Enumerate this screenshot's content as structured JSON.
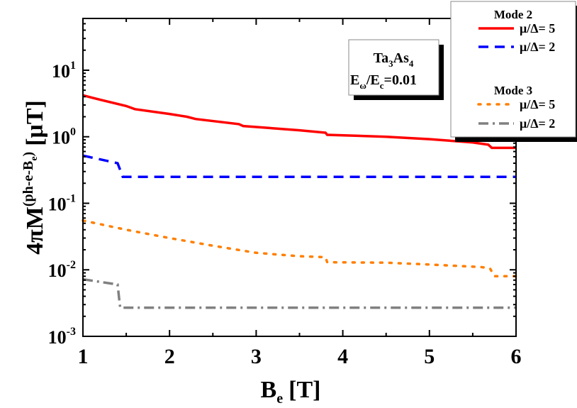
{
  "chart_data": {
    "type": "line",
    "xlabel": "B",
    "xlabel_sub": "e",
    "xlabel_unit": "[T]",
    "ylabel": "4πM",
    "ylabel_sup": "(ph-e-B",
    "ylabel_sup_sub": "e",
    "ylabel_sup_end": ")",
    "ylabel_unit": "[μT]",
    "xlim": [
      1,
      6
    ],
    "ylim": [
      0.001,
      60
    ],
    "yscale": "log",
    "grid": false,
    "x_ticks": [
      "1",
      "2",
      "3",
      "4",
      "5",
      "6"
    ],
    "y_ticks": [
      {
        "base": "10",
        "exp": "1"
      },
      {
        "base": "10",
        "exp": "0"
      },
      {
        "base": "10",
        "exp": "-1"
      },
      {
        "base": "10",
        "exp": "-2"
      },
      {
        "base": "10",
        "exp": "-3"
      }
    ],
    "annotation": {
      "line1": "Ta",
      "line1_sub1": "3",
      "line1_mid": "As",
      "line1_sub2": "4",
      "line2_a": "E",
      "line2_sub1": "ω",
      "line2_b": "/E",
      "line2_sub2": "c",
      "line2_c": "=0.01"
    },
    "legend_placement": "top-right",
    "legend_groups": [
      {
        "title": "Mode 2",
        "entries": [
          0,
          1
        ]
      },
      {
        "title": "Mode 3",
        "entries": [
          2,
          3
        ]
      }
    ],
    "series": [
      {
        "name": "μ/Δ= 5",
        "group": "Mode 2",
        "color": "#ff0000",
        "style": "solid",
        "x": [
          1,
          1.2,
          1.5,
          1.6,
          2,
          2.2,
          2.3,
          2.8,
          2.85,
          3.5,
          3.8,
          3.82,
          4.5,
          5,
          5.5,
          5.68,
          5.72,
          6
        ],
        "y": [
          4.2,
          3.6,
          2.9,
          2.6,
          2.2,
          2.0,
          1.85,
          1.55,
          1.45,
          1.25,
          1.15,
          1.07,
          1.0,
          0.92,
          0.82,
          0.76,
          0.68,
          0.68
        ]
      },
      {
        "name": "μ/Δ= 2",
        "group": "Mode 2",
        "color": "#0000ff",
        "style": "dashed",
        "x": [
          1,
          1.4,
          1.46,
          6
        ],
        "y": [
          0.52,
          0.4,
          0.25,
          0.25
        ]
      },
      {
        "name": "μ/Δ= 5",
        "group": "Mode 3",
        "color": "#ff7f00",
        "style": "dotted",
        "x": [
          1,
          1.5,
          2,
          2.5,
          3,
          3.5,
          3.8,
          3.82,
          4.5,
          5,
          5.6,
          5.7,
          5.75,
          6
        ],
        "y": [
          0.055,
          0.04,
          0.03,
          0.023,
          0.018,
          0.016,
          0.0155,
          0.013,
          0.0128,
          0.012,
          0.011,
          0.0105,
          0.008,
          0.008
        ]
      },
      {
        "name": "μ/Δ= 2",
        "group": "Mode 3",
        "color": "#808080",
        "style": "dashdot",
        "x": [
          1,
          1.4,
          1.43,
          6
        ],
        "y": [
          0.0072,
          0.006,
          0.0027,
          0.0027
        ]
      }
    ]
  }
}
